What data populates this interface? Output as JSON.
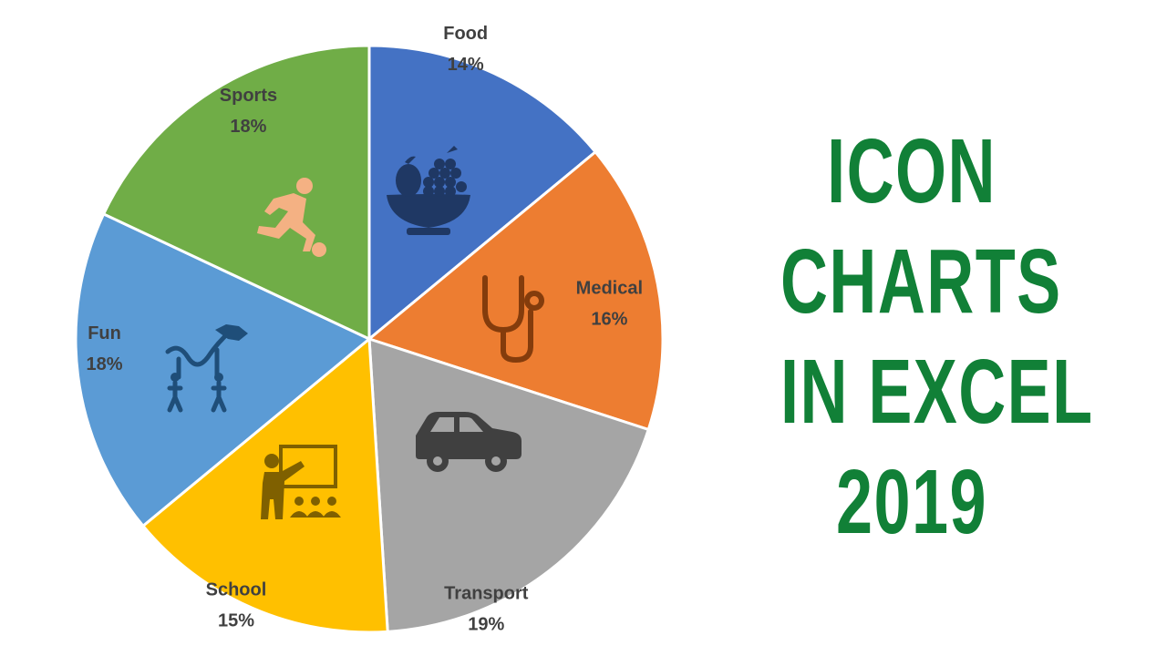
{
  "headline": {
    "lines": [
      "ICON",
      "CHARTS",
      "IN EXCEL",
      "2019"
    ],
    "color": "#118037"
  },
  "chart_data": {
    "type": "pie",
    "title": "",
    "start_angle_deg": 0,
    "direction": "clockwise",
    "slices": [
      {
        "label": "Food",
        "value": 14,
        "display": "14%",
        "color": "#4472C4",
        "icon": "fruit-bowl-icon",
        "icon_color": "#1F3864"
      },
      {
        "label": "Medical",
        "value": 16,
        "display": "16%",
        "color": "#ED7D31",
        "icon": "stethoscope-icon",
        "icon_color": "#843C0C"
      },
      {
        "label": "Transport",
        "value": 19,
        "display": "19%",
        "color": "#A5A5A5",
        "icon": "car-icon",
        "icon_color": "#404040"
      },
      {
        "label": "School",
        "value": 15,
        "display": "15%",
        "color": "#FFC000",
        "icon": "teacher-classroom-icon",
        "icon_color": "#7F6000"
      },
      {
        "label": "Fun",
        "value": 18,
        "display": "18%",
        "color": "#5B9BD5",
        "icon": "dragon-dance-icon",
        "icon_color": "#1F4E79"
      },
      {
        "label": "Sports",
        "value": 18,
        "display": "18%",
        "color": "#70AD47",
        "icon": "soccer-player-icon",
        "icon_color": "#F4B183"
      }
    ]
  }
}
